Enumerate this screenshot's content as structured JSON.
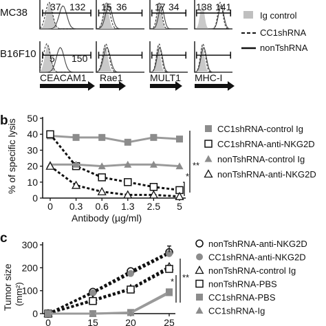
{
  "panel_a": {
    "row_labels": [
      "MC38",
      "B16F10"
    ],
    "column_labels": [
      "CEACAM1",
      "Rae1",
      "MULT1",
      "MHC-I"
    ],
    "numbers": {
      "mc38": [
        [
          "37",
          "132"
        ],
        [
          "15",
          "36"
        ],
        [
          "17",
          "34"
        ],
        [
          "138",
          "141"
        ]
      ],
      "b16": [
        [
          "5",
          "150"
        ],
        [],
        [],
        []
      ]
    },
    "legend": [
      {
        "label": "Ig control",
        "style": "fill-gray"
      },
      {
        "label": "CC1shRNA",
        "style": "dashed"
      },
      {
        "label": "nonTshRNA",
        "style": "solid"
      }
    ]
  },
  "chart_data": [
    {
      "panel": "b",
      "type": "line",
      "xlabel": "Antibody  (µg/ml)",
      "ylabel": "% of specific lysis",
      "categories": [
        "0",
        "0.3",
        "0.6",
        "1.3",
        "2.5",
        "5"
      ],
      "ylim": [
        0,
        50
      ],
      "yticks": [
        "0",
        "10",
        "20",
        "30",
        "40",
        "50"
      ],
      "series": [
        {
          "name": "CC1shRNA-control Ig",
          "marker": "square-filled",
          "line": "solid-gray",
          "values": [
            39,
            38,
            38,
            35,
            38,
            37
          ]
        },
        {
          "name": "CC1shRNA-anti-NKG2D",
          "marker": "square-open",
          "line": "dashed",
          "values": [
            40,
            20,
            13,
            10,
            7,
            5
          ]
        },
        {
          "name": "nonTshRNA-control Ig",
          "marker": "triangle-filled",
          "line": "solid-gray",
          "values": [
            21,
            21,
            20,
            21,
            21,
            20
          ]
        },
        {
          "name": "nonTshRNA-anti-NKG2D",
          "marker": "triangle-open",
          "line": "dashed",
          "values": [
            20,
            8,
            4,
            2,
            2,
            1
          ]
        }
      ],
      "significance": [
        "**",
        "*"
      ]
    },
    {
      "panel": "c",
      "type": "line",
      "ylabel": "Tumor size",
      "ylabel_unit": "(mm²)",
      "x": [
        0,
        15,
        20,
        25
      ],
      "ylim": [
        0,
        300
      ],
      "yticks": [
        "0",
        "100",
        "200",
        "300"
      ],
      "series": [
        {
          "name": "nonTshRNA-anti-NKG2D",
          "marker": "circle-open",
          "line": "dashed",
          "values": [
            0,
            95,
            185,
            268
          ]
        },
        {
          "name": "CC1shRNA-anti-NKG2D",
          "marker": "circle-filled",
          "line": "dashed",
          "values": [
            0,
            90,
            175,
            262
          ]
        },
        {
          "name": "nonTshRNA-control Ig",
          "marker": "triangle-open",
          "line": "dashed",
          "values": [
            0,
            60,
            110,
            205
          ]
        },
        {
          "name": "nonTshRNA-PBS",
          "marker": "square-open",
          "line": "dashed",
          "values": [
            0,
            55,
            105,
            195
          ]
        },
        {
          "name": "CC1shRNA-PBS",
          "marker": "square-filled",
          "line": "solid-gray",
          "values": [
            0,
            0,
            5,
            95
          ]
        },
        {
          "name": "CC1shRNA-Ig",
          "marker": "triangle-filled",
          "line": "solid-gray",
          "values": [
            0,
            0,
            3,
            90
          ]
        }
      ],
      "significance": [
        "**",
        "*"
      ]
    }
  ],
  "panel_letters": {
    "b": "b",
    "c": "c"
  }
}
